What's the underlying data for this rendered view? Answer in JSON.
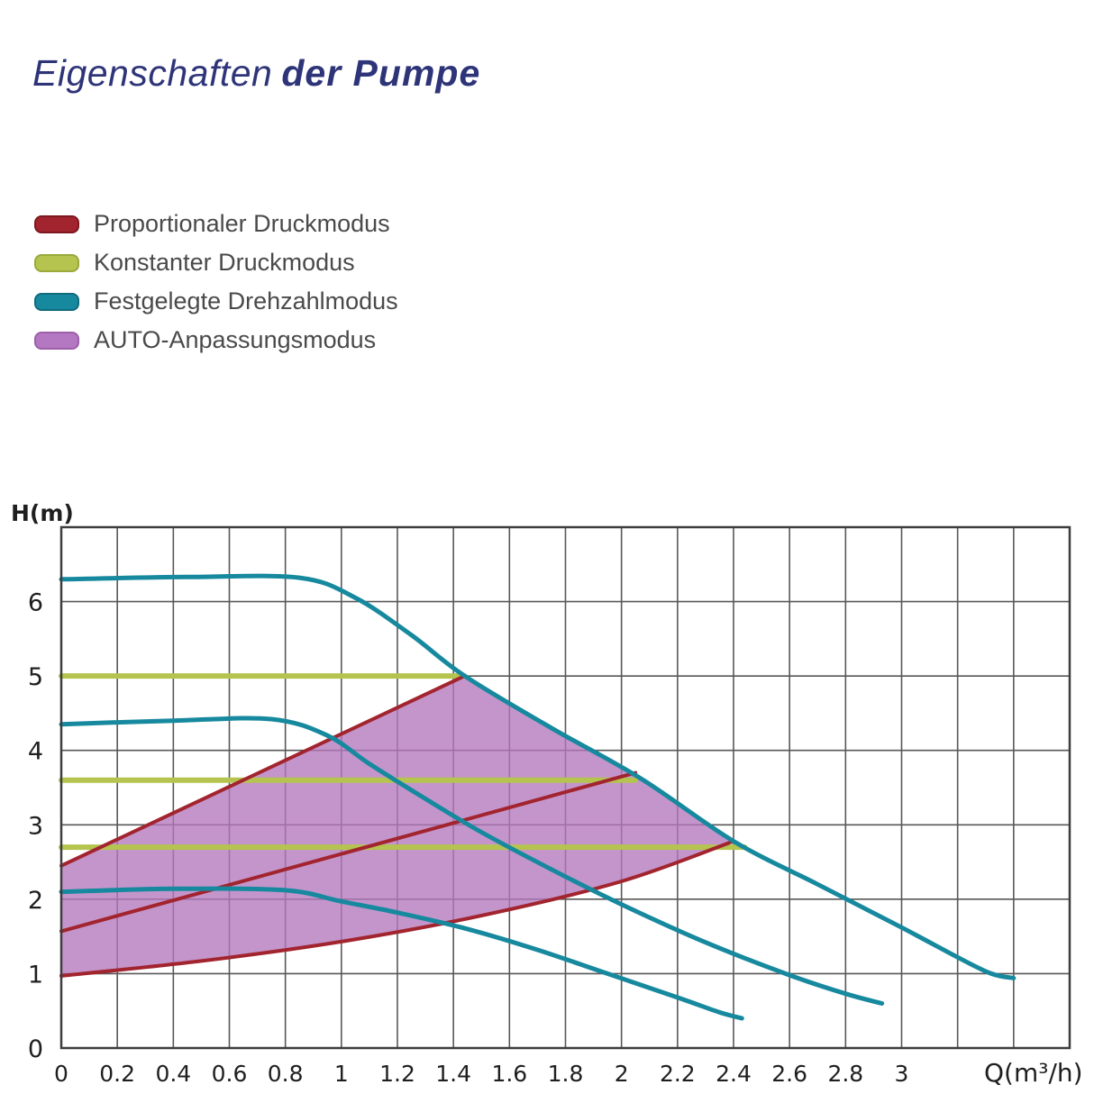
{
  "title": {
    "regular": "Eigenschaften",
    "bold": "der Pumpe",
    "color": "#2e3478"
  },
  "legend": {
    "items": [
      {
        "key": "proportional-pressure",
        "label": "Proportionaler Druckmodus",
        "color": "#a2242e",
        "border": "#7e1820"
      },
      {
        "key": "constant-pressure",
        "label": "Konstanter Druckmodus",
        "color": "#b5c44f",
        "border": "#9aa93c"
      },
      {
        "key": "fixed-speed",
        "label": "Festgelegte Drehzahlmodus",
        "color": "#17899e",
        "border": "#116b7d"
      },
      {
        "key": "auto-adaptation",
        "label": "AUTO-Anpassungsmodus",
        "color": "#b478c2",
        "border": "#9c5fa8"
      }
    ]
  },
  "chart_data": {
    "type": "line",
    "title": "Eigenschaften der Pumpe",
    "xlabel": "Q(m³/h)",
    "ylabel": "H(m)",
    "xlim": [
      0,
      3.6
    ],
    "ylim": [
      0,
      7
    ],
    "grid": true,
    "grid_step_x": 0.2,
    "grid_step_y": 1,
    "legend_position": "top-left",
    "x_ticks": [
      0,
      0.2,
      0.4,
      0.6,
      0.8,
      1,
      1.2,
      1.4,
      1.6,
      1.8,
      2,
      2.2,
      2.4,
      2.6,
      2.8,
      3
    ],
    "x_tick_labels": [
      "0",
      "0.2",
      "0.4",
      "0.6",
      "0.8",
      "1",
      "1.2",
      "1.4",
      "1.6",
      "1.8",
      "2",
      "2.2",
      "2.4",
      "2.6",
      "2.8",
      "3"
    ],
    "y_ticks": [
      0,
      1,
      2,
      3,
      4,
      5,
      6
    ],
    "y_tick_labels": [
      "0",
      "1",
      "2",
      "3",
      "4",
      "5",
      "6"
    ],
    "axis_color": "#3d3d3d",
    "grid_color": "#585858",
    "tick_text_color": "#1f1f1f",
    "series": [
      {
        "name": "Konstanter Druckmodus",
        "color": "#b5c44f",
        "stroke_width": 6,
        "segments": [
          [
            [
              0,
              5.0
            ],
            [
              1.44,
              5.0
            ]
          ],
          [
            [
              0,
              3.6
            ],
            [
              2.05,
              3.6
            ]
          ],
          [
            [
              0,
              2.7
            ],
            [
              2.44,
              2.7
            ]
          ]
        ]
      },
      {
        "name": "Proportionaler Druckmodus",
        "color": "#a2242e",
        "stroke_width": 4,
        "segments": [
          [
            [
              0,
              2.45
            ],
            [
              1.44,
              5.0
            ]
          ],
          [
            [
              0,
              1.57
            ],
            [
              2.05,
              3.7
            ]
          ],
          [
            [
              0,
              0.97
            ],
            [
              0.5,
              1.17
            ],
            [
              1.0,
              1.43
            ],
            [
              1.5,
              1.78
            ],
            [
              2.0,
              2.24
            ],
            [
              2.4,
              2.78
            ]
          ]
        ]
      },
      {
        "name": "Festgelegte Drehzahlmodus",
        "color": "#17899e",
        "stroke_width": 5,
        "segments": [
          [
            [
              0,
              6.3
            ],
            [
              0.45,
              6.33
            ],
            [
              0.85,
              6.32
            ],
            [
              1.05,
              6.05
            ],
            [
              1.25,
              5.55
            ],
            [
              1.44,
              5.0
            ],
            [
              1.75,
              4.3
            ],
            [
              2.07,
              3.62
            ],
            [
              2.4,
              2.78
            ],
            [
              2.7,
              2.2
            ],
            [
              3.0,
              1.62
            ],
            [
              3.2,
              1.22
            ],
            [
              3.32,
              1.0
            ],
            [
              3.4,
              0.94
            ]
          ],
          [
            [
              0,
              4.35
            ],
            [
              0.4,
              4.4
            ],
            [
              0.75,
              4.42
            ],
            [
              0.95,
              4.2
            ],
            [
              1.1,
              3.82
            ],
            [
              1.3,
              3.35
            ],
            [
              1.5,
              2.9
            ],
            [
              1.75,
              2.4
            ],
            [
              2.0,
              1.93
            ],
            [
              2.3,
              1.42
            ],
            [
              2.6,
              0.98
            ],
            [
              2.8,
              0.73
            ],
            [
              2.93,
              0.6
            ]
          ],
          [
            [
              0,
              2.1
            ],
            [
              0.4,
              2.14
            ],
            [
              0.8,
              2.12
            ],
            [
              1.0,
              1.97
            ],
            [
              1.2,
              1.82
            ],
            [
              1.45,
              1.6
            ],
            [
              1.7,
              1.32
            ],
            [
              1.95,
              1.0
            ],
            [
              2.2,
              0.68
            ],
            [
              2.35,
              0.48
            ],
            [
              2.43,
              0.4
            ]
          ]
        ]
      }
    ],
    "area": {
      "name": "AUTO-Anpassungsmodus",
      "color": "#b477bd",
      "opacity": 0.78,
      "points": [
        [
          0,
          0.97
        ],
        [
          0,
          2.45
        ],
        [
          1.44,
          5.0
        ],
        [
          1.75,
          4.3
        ],
        [
          2.07,
          3.62
        ],
        [
          2.4,
          2.78
        ],
        [
          2.0,
          2.24
        ],
        [
          1.5,
          1.78
        ],
        [
          1.0,
          1.43
        ],
        [
          0.5,
          1.17
        ]
      ]
    }
  }
}
